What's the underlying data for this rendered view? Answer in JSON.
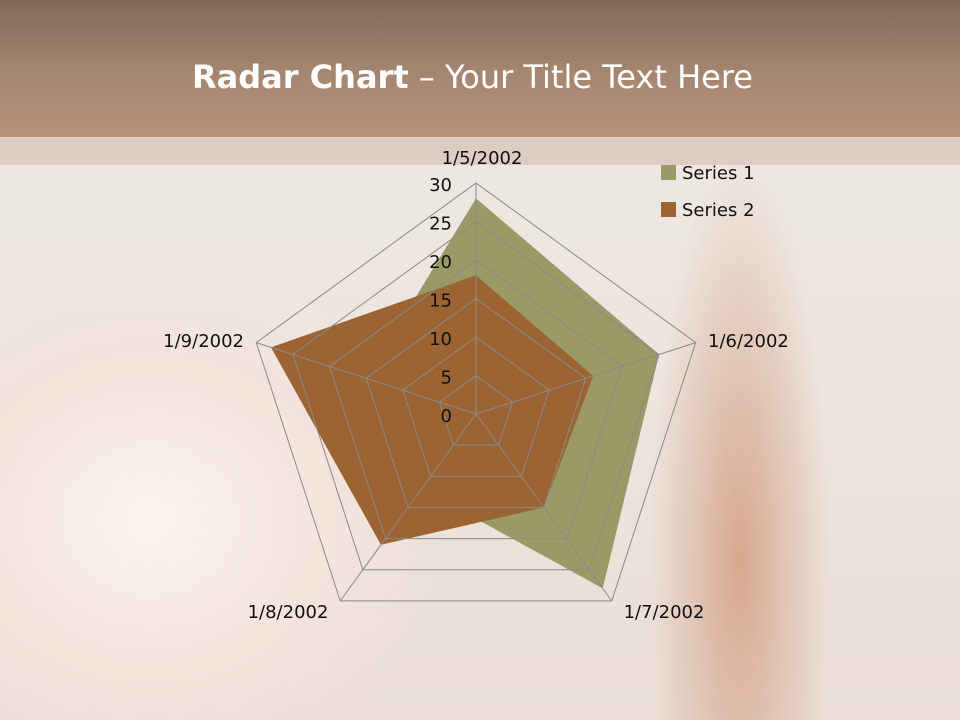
{
  "slide": {
    "title_bold": "Radar Chart",
    "title_rest": " – Your Title Text Here"
  },
  "chart_data": {
    "type": "radar",
    "categories": [
      "1/5/2002",
      "1/6/2002",
      "1/7/2002",
      "1/8/2002",
      "1/9/2002"
    ],
    "series": [
      {
        "name": "Series 1",
        "color": "#9a9a66",
        "values": [
          28,
          25,
          28,
          12,
          15
        ]
      },
      {
        "name": "Series 2",
        "color": "#9c6432",
        "values": [
          18,
          16,
          15,
          21,
          28
        ]
      }
    ],
    "radial_ticks": [
      "0",
      "5",
      "10",
      "15",
      "20",
      "25",
      "30"
    ],
    "range": [
      0,
      30
    ],
    "legend": "top-right"
  }
}
